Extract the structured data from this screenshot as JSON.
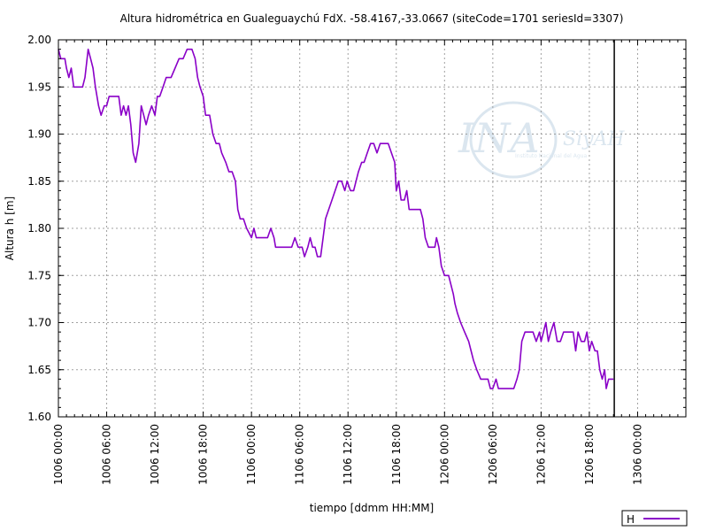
{
  "chart_data": {
    "type": "line",
    "title": "Altura hidrométrica en Gualeguaychú FdX. -58.4167,-33.0667  (siteCode=1701 seriesId=3307)",
    "xlabel": "tiempo [ddmm HH:MM]",
    "ylabel": "Altura h [m]",
    "ylim": [
      1.6,
      2.0
    ],
    "xlim": [
      0,
      78
    ],
    "x_unit": "hours since 1006 00:00",
    "grid": true,
    "legend_position": "bottom-right",
    "y_ticks": [
      "1.60",
      "1.65",
      "1.70",
      "1.75",
      "1.80",
      "1.85",
      "1.90",
      "1.95",
      "2.00"
    ],
    "x_ticks": [
      {
        "label": "1006 00:00",
        "x": 0
      },
      {
        "label": "1006 06:00",
        "x": 6
      },
      {
        "label": "1006 12:00",
        "x": 12
      },
      {
        "label": "1006 18:00",
        "x": 18
      },
      {
        "label": "1106 00:00",
        "x": 24
      },
      {
        "label": "1106 06:00",
        "x": 30
      },
      {
        "label": "1106 12:00",
        "x": 36
      },
      {
        "label": "1106 18:00",
        "x": 42
      },
      {
        "label": "1206 00:00",
        "x": 48
      },
      {
        "label": "1206 06:00",
        "x": 54
      },
      {
        "label": "1206 12:00",
        "x": 60
      },
      {
        "label": "1206 18:00",
        "x": 66
      },
      {
        "label": "1306 00:00",
        "x": 72
      }
    ],
    "vertical_marker_x": 69.1,
    "series": [
      {
        "name": "H",
        "color": "#8a00c8",
        "points": [
          [
            0,
            1.99
          ],
          [
            0.3,
            1.98
          ],
          [
            0.8,
            1.98
          ],
          [
            1.0,
            1.97
          ],
          [
            1.3,
            1.96
          ],
          [
            1.6,
            1.97
          ],
          [
            1.9,
            1.95
          ],
          [
            2.3,
            1.95
          ],
          [
            3.0,
            1.95
          ],
          [
            3.3,
            1.96
          ],
          [
            3.7,
            1.99
          ],
          [
            4.0,
            1.98
          ],
          [
            4.3,
            1.97
          ],
          [
            4.6,
            1.95
          ],
          [
            5.0,
            1.93
          ],
          [
            5.3,
            1.92
          ],
          [
            5.7,
            1.93
          ],
          [
            6.0,
            1.93
          ],
          [
            6.3,
            1.94
          ],
          [
            7.0,
            1.94
          ],
          [
            7.5,
            1.94
          ],
          [
            7.8,
            1.92
          ],
          [
            8.1,
            1.93
          ],
          [
            8.4,
            1.92
          ],
          [
            8.7,
            1.93
          ],
          [
            9.0,
            1.91
          ],
          [
            9.3,
            1.88
          ],
          [
            9.6,
            1.87
          ],
          [
            10.0,
            1.89
          ],
          [
            10.3,
            1.93
          ],
          [
            10.6,
            1.92
          ],
          [
            10.9,
            1.91
          ],
          [
            11.2,
            1.92
          ],
          [
            11.6,
            1.93
          ],
          [
            12.0,
            1.92
          ],
          [
            12.3,
            1.94
          ],
          [
            12.6,
            1.94
          ],
          [
            13.0,
            1.95
          ],
          [
            13.4,
            1.96
          ],
          [
            14.0,
            1.96
          ],
          [
            14.5,
            1.97
          ],
          [
            15.0,
            1.98
          ],
          [
            15.5,
            1.98
          ],
          [
            16.0,
            1.99
          ],
          [
            16.6,
            1.99
          ],
          [
            17.0,
            1.98
          ],
          [
            17.3,
            1.96
          ],
          [
            17.6,
            1.95
          ],
          [
            18.0,
            1.94
          ],
          [
            18.3,
            1.92
          ],
          [
            18.8,
            1.92
          ],
          [
            19.2,
            1.9
          ],
          [
            19.6,
            1.89
          ],
          [
            20.0,
            1.89
          ],
          [
            20.3,
            1.88
          ],
          [
            20.8,
            1.87
          ],
          [
            21.2,
            1.86
          ],
          [
            21.6,
            1.86
          ],
          [
            22.0,
            1.85
          ],
          [
            22.3,
            1.82
          ],
          [
            22.6,
            1.81
          ],
          [
            23.0,
            1.81
          ],
          [
            23.4,
            1.8
          ],
          [
            24.0,
            1.79
          ],
          [
            24.3,
            1.8
          ],
          [
            24.6,
            1.79
          ],
          [
            25.0,
            1.79
          ],
          [
            26.0,
            1.79
          ],
          [
            26.4,
            1.8
          ],
          [
            26.8,
            1.79
          ],
          [
            27.0,
            1.78
          ],
          [
            28.0,
            1.78
          ],
          [
            28.6,
            1.78
          ],
          [
            29.0,
            1.78
          ],
          [
            29.4,
            1.79
          ],
          [
            29.8,
            1.78
          ],
          [
            30.3,
            1.78
          ],
          [
            30.6,
            1.77
          ],
          [
            31.0,
            1.78
          ],
          [
            31.3,
            1.79
          ],
          [
            31.6,
            1.78
          ],
          [
            31.9,
            1.78
          ],
          [
            32.2,
            1.77
          ],
          [
            32.6,
            1.77
          ],
          [
            32.9,
            1.79
          ],
          [
            33.2,
            1.81
          ],
          [
            33.6,
            1.82
          ],
          [
            34.0,
            1.83
          ],
          [
            34.4,
            1.84
          ],
          [
            34.8,
            1.85
          ],
          [
            35.2,
            1.85
          ],
          [
            35.6,
            1.84
          ],
          [
            35.9,
            1.85
          ],
          [
            36.3,
            1.84
          ],
          [
            36.7,
            1.84
          ],
          [
            37.0,
            1.85
          ],
          [
            37.3,
            1.86
          ],
          [
            37.7,
            1.87
          ],
          [
            38.0,
            1.87
          ],
          [
            38.4,
            1.88
          ],
          [
            38.8,
            1.89
          ],
          [
            39.2,
            1.89
          ],
          [
            39.6,
            1.88
          ],
          [
            40.0,
            1.89
          ],
          [
            40.5,
            1.89
          ],
          [
            41.0,
            1.89
          ],
          [
            41.4,
            1.88
          ],
          [
            41.8,
            1.87
          ],
          [
            42.0,
            1.84
          ],
          [
            42.3,
            1.85
          ],
          [
            42.6,
            1.83
          ],
          [
            43.0,
            1.83
          ],
          [
            43.3,
            1.84
          ],
          [
            43.6,
            1.82
          ],
          [
            44.0,
            1.82
          ],
          [
            44.5,
            1.82
          ],
          [
            45.0,
            1.82
          ],
          [
            45.3,
            1.81
          ],
          [
            45.6,
            1.79
          ],
          [
            46.0,
            1.78
          ],
          [
            46.4,
            1.78
          ],
          [
            46.8,
            1.78
          ],
          [
            47.0,
            1.79
          ],
          [
            47.3,
            1.78
          ],
          [
            47.6,
            1.76
          ],
          [
            48.0,
            1.75
          ],
          [
            48.5,
            1.75
          ],
          [
            48.8,
            1.74
          ],
          [
            49.1,
            1.73
          ],
          [
            49.3,
            1.72
          ],
          [
            49.6,
            1.71
          ],
          [
            50.0,
            1.7
          ],
          [
            50.5,
            1.69
          ],
          [
            51.0,
            1.68
          ],
          [
            51.3,
            1.67
          ],
          [
            51.6,
            1.66
          ],
          [
            52.0,
            1.65
          ],
          [
            52.5,
            1.64
          ],
          [
            53.0,
            1.64
          ],
          [
            53.4,
            1.64
          ],
          [
            53.7,
            1.63
          ],
          [
            54.0,
            1.63
          ],
          [
            54.4,
            1.64
          ],
          [
            54.7,
            1.63
          ],
          [
            55.0,
            1.63
          ],
          [
            56.0,
            1.63
          ],
          [
            56.6,
            1.63
          ],
          [
            57.0,
            1.64
          ],
          [
            57.3,
            1.65
          ],
          [
            57.6,
            1.68
          ],
          [
            58.0,
            1.69
          ],
          [
            58.5,
            1.69
          ],
          [
            59.0,
            1.69
          ],
          [
            59.4,
            1.68
          ],
          [
            59.8,
            1.69
          ],
          [
            60.0,
            1.68
          ],
          [
            60.3,
            1.69
          ],
          [
            60.6,
            1.7
          ],
          [
            60.9,
            1.68
          ],
          [
            61.2,
            1.69
          ],
          [
            61.6,
            1.7
          ],
          [
            62.0,
            1.68
          ],
          [
            62.4,
            1.68
          ],
          [
            62.8,
            1.69
          ],
          [
            63.2,
            1.69
          ],
          [
            64.0,
            1.69
          ],
          [
            64.3,
            1.67
          ],
          [
            64.6,
            1.69
          ],
          [
            65.0,
            1.68
          ],
          [
            65.4,
            1.68
          ],
          [
            65.7,
            1.69
          ],
          [
            66.0,
            1.67
          ],
          [
            66.3,
            1.68
          ],
          [
            66.7,
            1.67
          ],
          [
            67.0,
            1.67
          ],
          [
            67.3,
            1.65
          ],
          [
            67.6,
            1.64
          ],
          [
            67.9,
            1.65
          ],
          [
            68.1,
            1.63
          ],
          [
            68.4,
            1.64
          ],
          [
            68.8,
            1.64
          ],
          [
            69.0,
            1.64
          ]
        ]
      }
    ]
  },
  "legend": {
    "label": "H"
  },
  "watermark": {
    "ina": "INA",
    "siyah": "SiyAH",
    "subtitle": "Instituto Nacional del Agua"
  },
  "colors": {
    "series": "#8a00c8",
    "grid": "#a0a0a0",
    "axis": "#000000",
    "watermark": "#b8cfe0"
  }
}
